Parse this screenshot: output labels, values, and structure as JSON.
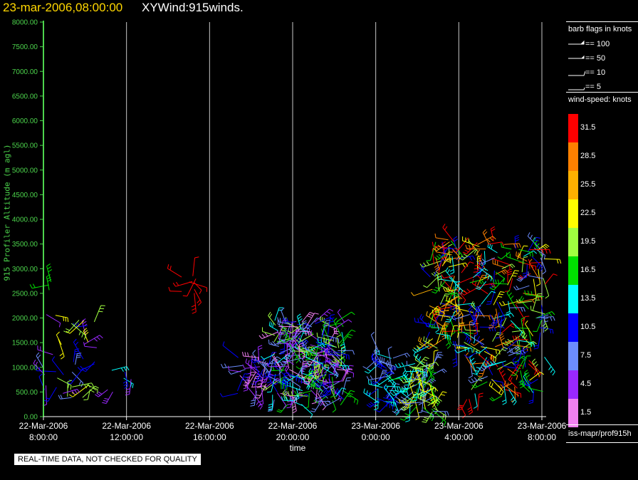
{
  "header": {
    "time_label": "23-mar-2006,08:00:00",
    "title": "XYWind:915winds."
  },
  "colors": {
    "axis": "#4cd44c",
    "title_time": "#ffd700",
    "grid": "#c8c8c8"
  },
  "chart_data": {
    "type": "scatter",
    "glyph": "wind barbs",
    "xlabel": "time",
    "ylabel": "915 Profiler Altitude (m agl)",
    "xlim": [
      "2006-03-22 08:00",
      "2006-03-23 08:00"
    ],
    "ylim": [
      0,
      8000
    ],
    "y_ticks": [
      0,
      500,
      1000,
      1500,
      2000,
      2500,
      3000,
      3500,
      4000,
      4500,
      5000,
      5500,
      6000,
      6500,
      7000,
      7500,
      8000
    ],
    "y_tick_labels": [
      "0.00",
      "500.00",
      "1000.00",
      "1500.00",
      "2000.00",
      "2500.00",
      "3000.00",
      "3500.00",
      "4000.00",
      "4500.00",
      "5000.00",
      "5500.00",
      "6000.00",
      "6500.00",
      "7000.00",
      "7500.00",
      "8000.00"
    ],
    "x_ticks": [
      {
        "hours": 0,
        "date": "22-Mar-2006",
        "time": "8:00:00"
      },
      {
        "hours": 4,
        "date": "22-Mar-2006",
        "time": "12:00:00"
      },
      {
        "hours": 8,
        "date": "22-Mar-2006",
        "time": "16:00:00"
      },
      {
        "hours": 12,
        "date": "22-Mar-2006",
        "time": "20:00:00"
      },
      {
        "hours": 16,
        "date": "23-Mar-2006",
        "time": "0:00:00"
      },
      {
        "hours": 20,
        "date": "23-Mar-2006",
        "time": "4:00:00"
      },
      {
        "hours": 24,
        "date": "23-Mar-2006",
        "time": "8:00:00"
      }
    ],
    "grid": "vertical",
    "speed_scale": {
      "unit": "knots",
      "levels": [
        {
          "label": "31.5",
          "color": "#ff0000"
        },
        {
          "label": "28.5",
          "color": "#ff8000"
        },
        {
          "label": "25.5",
          "color": "#ffb000"
        },
        {
          "label": "22.5",
          "color": "#ffff00"
        },
        {
          "label": "19.5",
          "color": "#a0ff40"
        },
        {
          "label": "16.5",
          "color": "#00e000"
        },
        {
          "label": "13.5",
          "color": "#00ffff"
        },
        {
          "label": "10.5",
          "color": "#0000ff"
        },
        {
          "label": "7.5",
          "color": "#6c8cff"
        },
        {
          "label": "4.5",
          "color": "#9a28ff"
        },
        {
          "label": "1.5",
          "color": "#f080f0"
        }
      ]
    },
    "clusters": [
      {
        "hours": [
          0,
          2.6
        ],
        "alt": [
          350,
          2100
        ],
        "count": 34,
        "colors": [
          "#0000ff",
          "#6c8cff",
          "#9a28ff",
          "#a0ff40",
          "#ffff00"
        ]
      },
      {
        "hours": [
          0,
          0.4
        ],
        "alt": [
          2550,
          2800
        ],
        "count": 3,
        "colors": [
          "#a0ff40",
          "#00e000"
        ]
      },
      {
        "hours": [
          1.3,
          2.0
        ],
        "alt": [
          1850,
          2000
        ],
        "count": 3,
        "colors": [
          "#a0ff40",
          "#ffff00"
        ]
      },
      {
        "hours": [
          3.0,
          4.5
        ],
        "alt": [
          500,
          1300
        ],
        "count": 6,
        "colors": [
          "#0000ff",
          "#6c8cff",
          "#9a28ff",
          "#00ffff"
        ]
      },
      {
        "hours": [
          6.6,
          7.4
        ],
        "alt": [
          2500,
          2850
        ],
        "count": 9,
        "colors": [
          "#ff0000"
        ]
      },
      {
        "hours": [
          9.3,
          11.0
        ],
        "alt": [
          450,
          1200
        ],
        "count": 40,
        "colors": [
          "#9a28ff",
          "#f080f0",
          "#6c8cff",
          "#0000ff"
        ]
      },
      {
        "hours": [
          11.0,
          14.5
        ],
        "alt": [
          200,
          1950
        ],
        "count": 230,
        "colors": [
          "#9a28ff",
          "#6c8cff",
          "#0000ff",
          "#00e000",
          "#a0ff40",
          "#00ffff",
          "#f080f0"
        ]
      },
      {
        "hours": [
          16.0,
          16.9
        ],
        "alt": [
          250,
          1300
        ],
        "count": 40,
        "colors": [
          "#0000ff",
          "#6c8cff",
          "#00ffff"
        ]
      },
      {
        "hours": [
          17.5,
          18.8
        ],
        "alt": [
          100,
          1100
        ],
        "count": 80,
        "colors": [
          "#00ffff",
          "#6c8cff",
          "#a0ff40",
          "#00e000",
          "#ffff00"
        ]
      },
      {
        "hours": [
          18.5,
          20.5
        ],
        "alt": [
          1300,
          3650
        ],
        "count": 100,
        "colors": [
          "#ff0000",
          "#ff8000",
          "#ffb000",
          "#ffff00",
          "#a0ff40",
          "#00e000",
          "#00ffff",
          "#0000ff"
        ]
      },
      {
        "hours": [
          20.5,
          24.2
        ],
        "alt": [
          400,
          3450
        ],
        "count": 190,
        "colors": [
          "#a0ff40",
          "#00e000",
          "#00ffff",
          "#ffff00",
          "#ff8000",
          "#ff0000",
          "#0000ff",
          "#6c8cff"
        ]
      },
      {
        "hours": [
          20.8,
          22.2
        ],
        "alt": [
          3300,
          3600
        ],
        "count": 8,
        "colors": [
          "#ff0000",
          "#ff8000"
        ]
      },
      {
        "hours": [
          20,
          21
        ],
        "alt": [
          100,
          400
        ],
        "count": 4,
        "colors": [
          "#ff0000"
        ]
      }
    ]
  },
  "legend": {
    "flags_header": "barb flags in knots",
    "flags": [
      {
        "label": "== 100",
        "kind": "pennant"
      },
      {
        "label": "== 50",
        "kind": "pennant-half"
      },
      {
        "label": "== 10",
        "kind": "full"
      },
      {
        "label": "== 5",
        "kind": "half"
      }
    ],
    "scale_header": "wind-speed: knots"
  },
  "footer": {
    "source": "iss-mapr/prof915h",
    "notice": "REAL-TIME DATA, NOT CHECKED FOR QUALITY"
  }
}
